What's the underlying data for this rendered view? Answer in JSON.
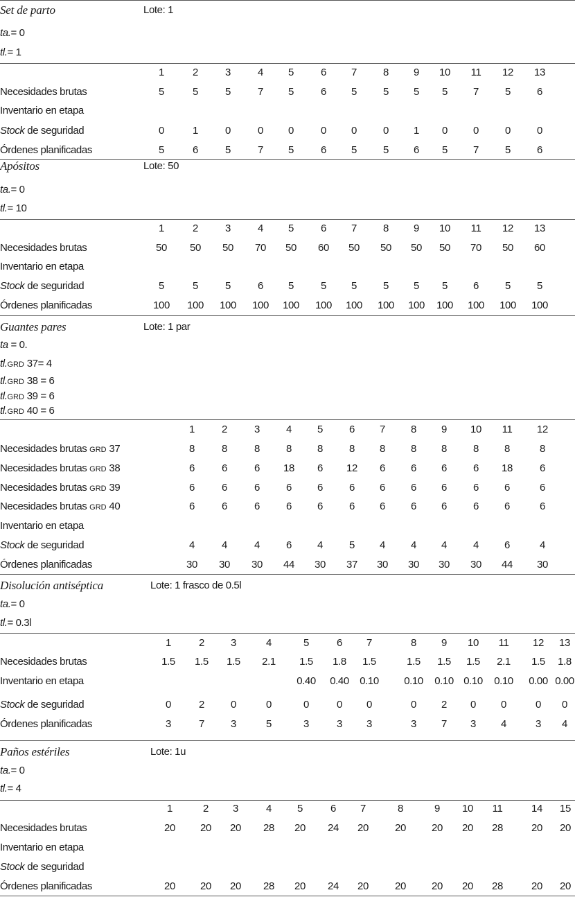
{
  "sections": [
    {
      "title": "Set de parto",
      "lote": "Lote: 1",
      "params": [
        {
          "var": "ta.",
          "sub": "",
          "rest": "= 0"
        },
        {
          "var": "tl.",
          "sub": "",
          "rest": "= 1"
        }
      ],
      "periods": [
        "1",
        "2",
        "3",
        "4",
        "5",
        "6",
        "7",
        "8",
        "9",
        "10",
        "11",
        "12",
        "13"
      ],
      "rows": [
        {
          "em": "",
          "label": "Necesidades brutas",
          "sub": "",
          "values": [
            "5",
            "5",
            "5",
            "7",
            "5",
            "6",
            "5",
            "5",
            "5",
            "5",
            "7",
            "5",
            "6"
          ]
        },
        {
          "em": "",
          "label": "Inventario en etapa",
          "sub": "",
          "values": []
        },
        {
          "em": "Stock",
          "label": " de seguridad",
          "sub": "",
          "values": [
            "0",
            "1",
            "0",
            "0",
            "0",
            "0",
            "0",
            "0",
            "1",
            "0",
            "0",
            "0",
            "0"
          ]
        },
        {
          "em": "",
          "label": "Órdenes planificadas",
          "sub": "",
          "values": [
            "5",
            "6",
            "5",
            "7",
            "5",
            "6",
            "5",
            "5",
            "6",
            "5",
            "7",
            "5",
            "6"
          ]
        }
      ]
    },
    {
      "title": "Apósitos",
      "lote": "Lote: 50",
      "params": [
        {
          "var": "ta.",
          "sub": "",
          "rest": "= 0"
        },
        {
          "var": "tl.",
          "sub": "",
          "rest": "= 10"
        }
      ],
      "periods": [
        "1",
        "2",
        "3",
        "4",
        "5",
        "6",
        "7",
        "8",
        "9",
        "10",
        "11",
        "12",
        "13"
      ],
      "rows": [
        {
          "em": "",
          "label": "Necesidades brutas",
          "sub": "",
          "values": [
            "50",
            "50",
            "50",
            "70",
            "50",
            "60",
            "50",
            "50",
            "50",
            "50",
            "70",
            "50",
            "60"
          ]
        },
        {
          "em": "",
          "label": "Inventario en etapa",
          "sub": "",
          "values": []
        },
        {
          "em": "Stock",
          "label": " de seguridad",
          "sub": "",
          "values": [
            "5",
            "5",
            "5",
            "6",
            "5",
            "5",
            "5",
            "5",
            "5",
            "5",
            "6",
            "5",
            "5"
          ]
        },
        {
          "em": "",
          "label": "Órdenes planificadas",
          "sub": "",
          "values": [
            "100",
            "100",
            "100",
            "100",
            "100",
            "100",
            "100",
            "100",
            "100",
            "100",
            "100",
            "100",
            "100"
          ]
        }
      ]
    },
    {
      "title": "Guantes pares",
      "lote": "Lote: 1 par",
      "params": [
        {
          "var": "ta",
          "sub": "",
          "rest": " = 0."
        },
        {
          "var": "tl.",
          "sub": "GRD",
          "rest": " 37= 4"
        },
        {
          "var": "tl.",
          "sub": "GRD",
          "rest": " 38 = 6"
        },
        {
          "var": "tl.",
          "sub": "GRD",
          "rest": " 39 = 6"
        },
        {
          "var": "tl.",
          "sub": "GRD",
          "rest": " 40 = 6"
        }
      ],
      "periods": [
        "1",
        "2",
        "3",
        "4",
        "5",
        "6",
        "7",
        "8",
        "9",
        "10",
        "11",
        "12"
      ],
      "rows": [
        {
          "em": "",
          "label": "Necesidades brutas ",
          "sub": "GRD",
          "post": " 37",
          "values": [
            "8",
            "8",
            "8",
            "8",
            "8",
            "8",
            "8",
            "8",
            "8",
            "8",
            "8",
            "8"
          ]
        },
        {
          "em": "",
          "label": "Necesidades brutas ",
          "sub": "GRD",
          "post": " 38",
          "values": [
            "6",
            "6",
            "6",
            "18",
            "6",
            "12",
            "6",
            "6",
            "6",
            "6",
            "18",
            "6"
          ]
        },
        {
          "em": "",
          "label": "Necesidades brutas ",
          "sub": "GRD",
          "post": " 39",
          "values": [
            "6",
            "6",
            "6",
            "6",
            "6",
            "6",
            "6",
            "6",
            "6",
            "6",
            "6",
            "6"
          ]
        },
        {
          "em": "",
          "label": "Necesidades brutas ",
          "sub": "GRD",
          "post": " 40",
          "values": [
            "6",
            "6",
            "6",
            "6",
            "6",
            "6",
            "6",
            "6",
            "6",
            "6",
            "6",
            "6"
          ]
        },
        {
          "em": "",
          "label": "Inventario en etapa",
          "sub": "",
          "values": []
        },
        {
          "em": "Stock",
          "label": " de seguridad",
          "sub": "",
          "values": [
            "4",
            "4",
            "4",
            "6",
            "4",
            "5",
            "4",
            "4",
            "4",
            "4",
            "6",
            "4"
          ]
        },
        {
          "em": "",
          "label": "Órdenes planificadas",
          "sub": "",
          "values": [
            "30",
            "30",
            "30",
            "44",
            "30",
            "37",
            "30",
            "30",
            "30",
            "30",
            "44",
            "30"
          ]
        }
      ]
    },
    {
      "title": "Disolución antiséptica",
      "lote": "Lote: 1 frasco de 0.5l",
      "params": [
        {
          "var": "ta.",
          "sub": "",
          "rest": "= 0"
        },
        {
          "var": "tl.",
          "sub": "",
          "rest": "= 0.3l"
        }
      ],
      "periods": [
        "1",
        "2",
        "3",
        "4",
        "5",
        "6",
        "7",
        "8",
        "9",
        "10",
        "11",
        "12",
        "13"
      ],
      "rows": [
        {
          "em": "",
          "label": "Necesidades brutas",
          "sub": "",
          "values": [
            "1.5",
            "1.5",
            "1.5",
            "2.1",
            "1.5",
            "1.8",
            "1.5",
            "1.5",
            "1.5",
            "1.5",
            "2.1",
            "1.5",
            "1.8"
          ]
        },
        {
          "em": "",
          "label": "Inventario en etapa",
          "sub": "",
          "values": [
            "",
            "",
            "",
            "",
            "0.40",
            "0.40",
            "0.10",
            "0.10",
            "0.10",
            "0.10",
            "0.10",
            "0.00",
            "0.00"
          ]
        },
        {
          "em": "Stock",
          "label": " de seguridad",
          "sub": "",
          "values": [
            "0",
            "2",
            "0",
            "0",
            "0",
            "0",
            "0",
            "0",
            "2",
            "0",
            "0",
            "0",
            "0"
          ]
        },
        {
          "em": "",
          "label": "Órdenes planificadas",
          "sub": "",
          "values": [
            "3",
            "7",
            "3",
            "5",
            "3",
            "3",
            "3",
            "3",
            "7",
            "3",
            "4",
            "3",
            "4"
          ]
        }
      ]
    },
    {
      "title": "Paños estériles",
      "lote": "Lote: 1u",
      "params": [
        {
          "var": "ta.",
          "sub": "",
          "rest": "= 0"
        },
        {
          "var": "tl.",
          "sub": "",
          "rest": "= 4"
        }
      ],
      "periods": [
        "1",
        "2",
        "3",
        "4",
        "5",
        "6",
        "7",
        "8",
        "9",
        "10",
        "11",
        "14",
        "15"
      ],
      "rows": [
        {
          "em": "",
          "label": "Necesidades brutas",
          "sub": "",
          "values": [
            "20",
            "20",
            "20",
            "28",
            "20",
            "24",
            "20",
            "20",
            "20",
            "20",
            "28",
            "20",
            "20"
          ]
        },
        {
          "em": "",
          "label": "Inventario en etapa",
          "sub": "",
          "values": []
        },
        {
          "em": "Stock",
          "label": " de seguridad",
          "sub": "",
          "values": []
        },
        {
          "em": "",
          "label": "Órdenes planificadas",
          "sub": "",
          "values": [
            "20",
            "20",
            "20",
            "28",
            "20",
            "24",
            "20",
            "20",
            "20",
            "20",
            "28",
            "20",
            "20"
          ]
        }
      ]
    }
  ]
}
